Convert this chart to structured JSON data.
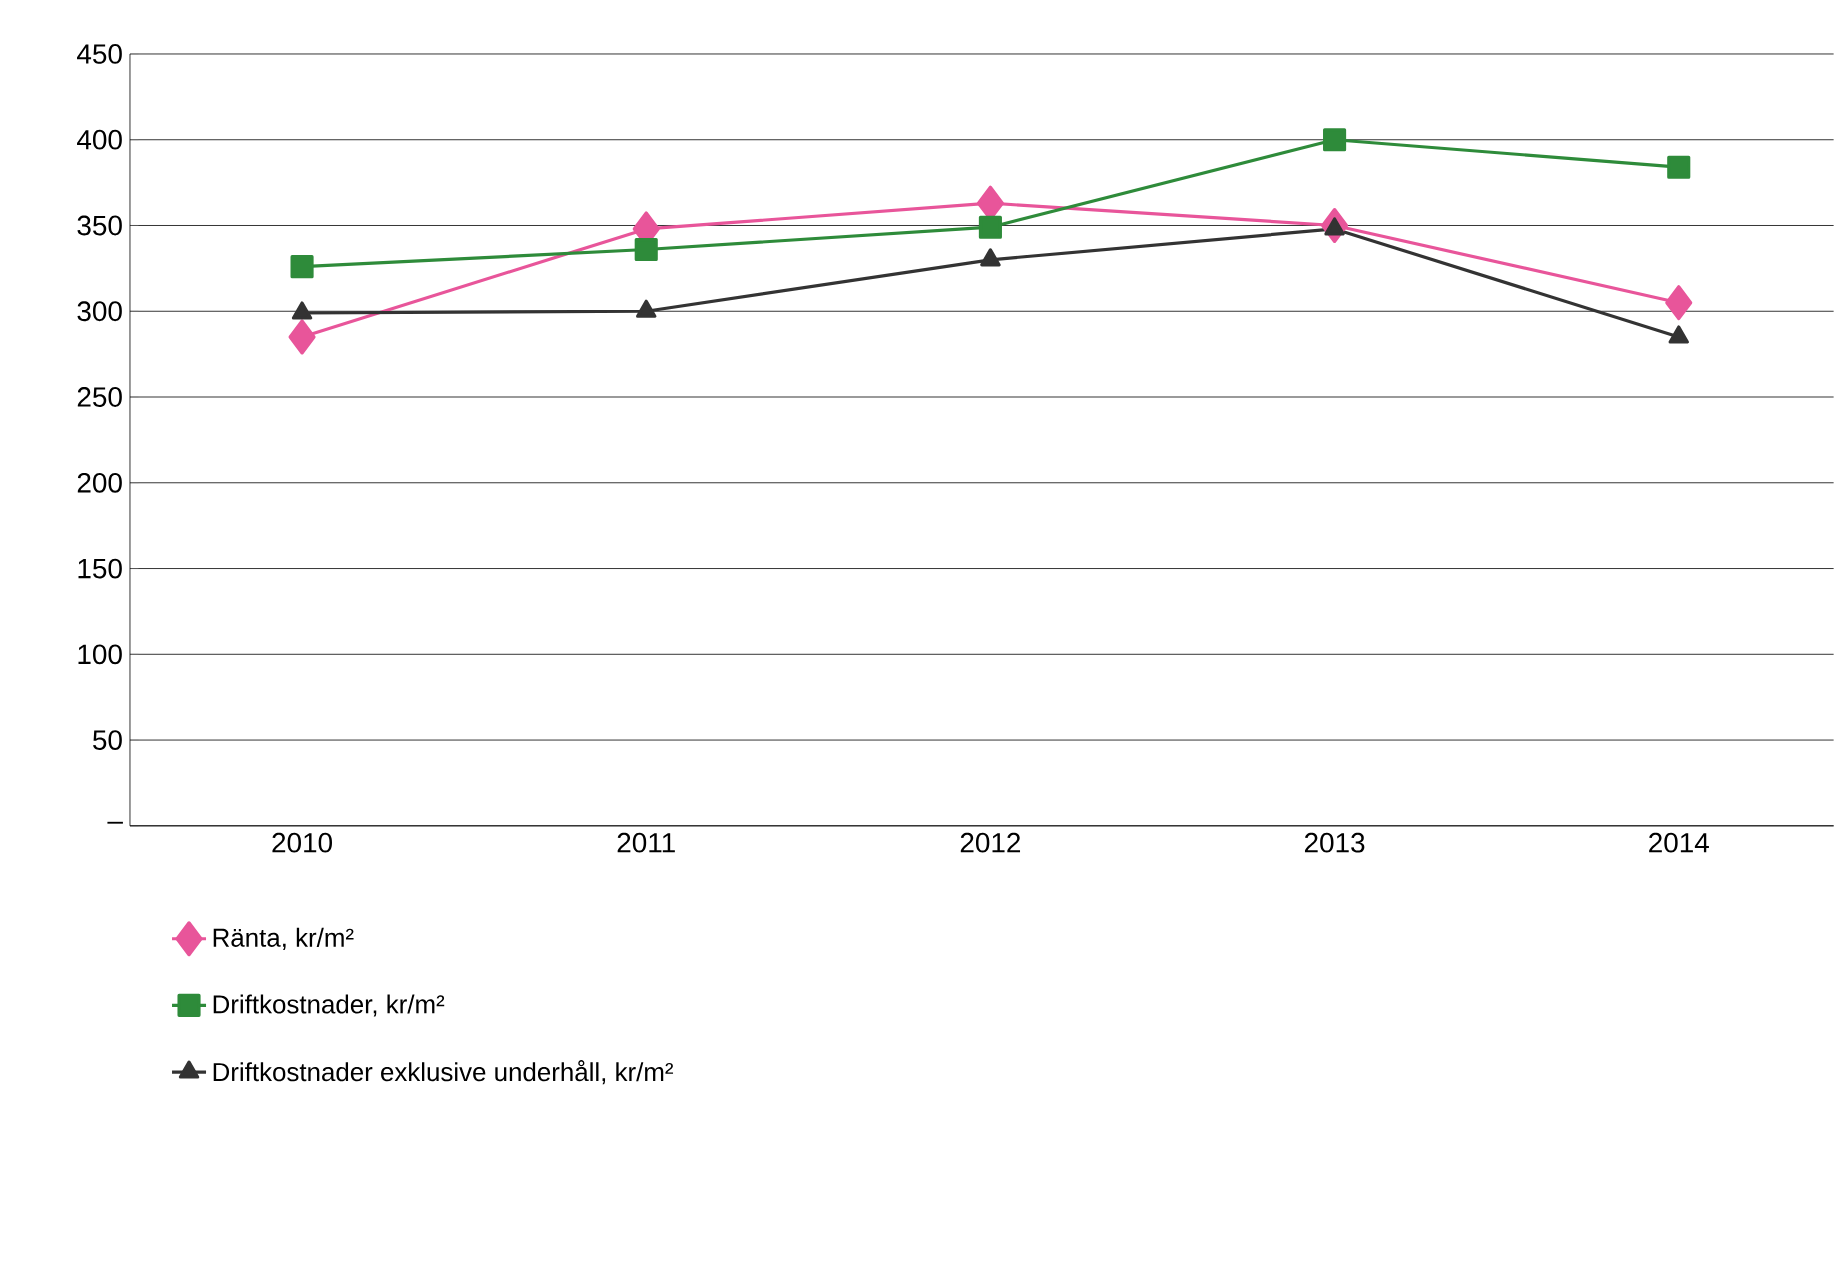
{
  "chart_data": {
    "type": "line",
    "categories": [
      "2010",
      "2011",
      "2012",
      "2013",
      "2014"
    ],
    "series": [
      {
        "name": "Ränta, kr/m²",
        "color": "#e8559a",
        "marker": "diamond",
        "values": [
          285,
          348,
          363,
          350,
          305
        ]
      },
      {
        "name": "Driftkostnader, kr/m²",
        "color": "#2e8b3a",
        "marker": "square",
        "values": [
          326,
          336,
          349,
          400,
          384
        ]
      },
      {
        "name": "Driftkostnader exklusive underhåll, kr/m²",
        "color": "#333333",
        "marker": "triangle",
        "values": [
          299,
          300,
          330,
          348,
          285
        ]
      }
    ],
    "ylim": [
      0,
      450
    ],
    "yticks": [
      {
        "value": 0,
        "label": "–"
      },
      50,
      100,
      150,
      200,
      250,
      300,
      350,
      400,
      450
    ],
    "grid": "y",
    "legend": "bottom",
    "line_style": "solid"
  }
}
